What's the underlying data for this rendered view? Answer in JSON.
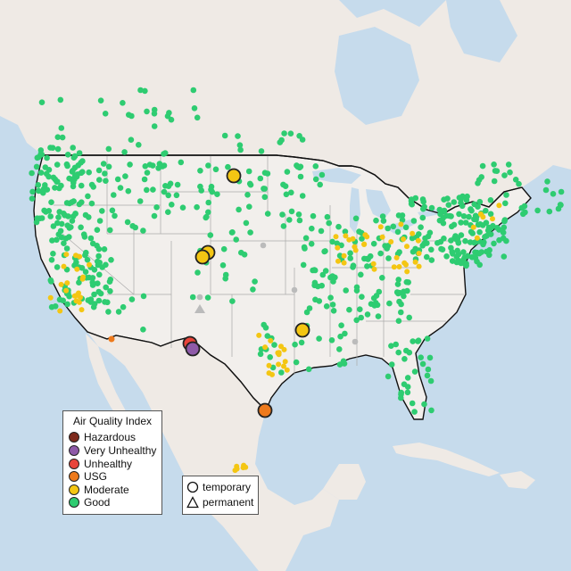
{
  "legend": {
    "title": "Air Quality Index",
    "categories": [
      {
        "label": "Hazardous",
        "color": "#7e2a1c"
      },
      {
        "label": "Very Unhealthy",
        "color": "#8e5aa8"
      },
      {
        "label": "Unhealthy",
        "color": "#e8443a"
      },
      {
        "label": "USG",
        "color": "#ee7a1c"
      },
      {
        "label": "Moderate",
        "color": "#f4c613"
      },
      {
        "label": "Good",
        "color": "#2ecc71"
      }
    ]
  },
  "site_types": [
    {
      "label": "temporary",
      "shape": "circle"
    },
    {
      "label": "permanent",
      "shape": "triangle"
    }
  ],
  "colors": {
    "water": "#c6dbec",
    "land": "#efeae5",
    "us_land": "#f2efec",
    "state_border": "#aaaaaa",
    "country_border": "#111111",
    "inactive_site": "#bbbbbb"
  }
}
